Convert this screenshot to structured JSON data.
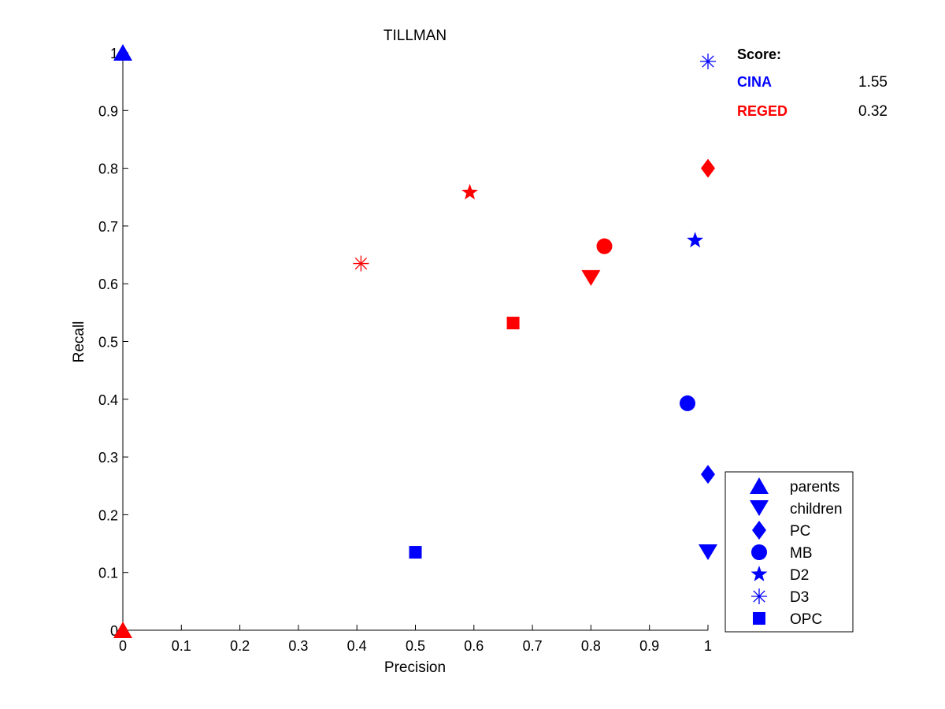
{
  "chart_data": {
    "type": "scatter",
    "title": "TILLMAN",
    "xlabel": "Precision",
    "ylabel": "Recall",
    "xlim": [
      0,
      1
    ],
    "ylim": [
      0,
      1
    ],
    "xticks": [
      "0",
      "0.1",
      "0.2",
      "0.3",
      "0.4",
      "0.5",
      "0.6",
      "0.7",
      "0.8",
      "0.9",
      "1"
    ],
    "yticks": [
      "0",
      "0.1",
      "0.2",
      "0.3",
      "0.4",
      "0.5",
      "0.6",
      "0.7",
      "0.8",
      "0.9",
      "1"
    ],
    "grid": false,
    "legend_position": "bottom-right",
    "legend": [
      {
        "label": "parents",
        "marker": "triangle-up"
      },
      {
        "label": "children",
        "marker": "triangle-down"
      },
      {
        "label": "PC",
        "marker": "diamond"
      },
      {
        "label": "MB",
        "marker": "circle"
      },
      {
        "label": "D2",
        "marker": "star"
      },
      {
        "label": "D3",
        "marker": "asterisk"
      },
      {
        "label": "OPC",
        "marker": "square"
      }
    ],
    "series": [
      {
        "dataset": "CINA",
        "color": "#0000ff",
        "points": [
          {
            "marker": "triangle-up",
            "x": 0.0,
            "y": 1.0
          },
          {
            "marker": "triangle-down",
            "x": 1.0,
            "y": 0.135
          },
          {
            "marker": "diamond",
            "x": 1.0,
            "y": 0.27
          },
          {
            "marker": "circle",
            "x": 0.965,
            "y": 0.393
          },
          {
            "marker": "star",
            "x": 0.978,
            "y": 0.675
          },
          {
            "marker": "asterisk",
            "x": 1.0,
            "y": 0.985
          },
          {
            "marker": "square",
            "x": 0.5,
            "y": 0.135
          }
        ]
      },
      {
        "dataset": "REGED",
        "color": "#ff0000",
        "points": [
          {
            "marker": "triangle-up",
            "x": 0.0,
            "y": 0.0
          },
          {
            "marker": "triangle-down",
            "x": 0.8,
            "y": 0.61
          },
          {
            "marker": "diamond",
            "x": 1.0,
            "y": 0.8
          },
          {
            "marker": "circle",
            "x": 0.823,
            "y": 0.665
          },
          {
            "marker": "star",
            "x": 0.593,
            "y": 0.758
          },
          {
            "marker": "asterisk",
            "x": 0.407,
            "y": 0.635
          },
          {
            "marker": "square",
            "x": 0.667,
            "y": 0.532
          }
        ]
      }
    ],
    "score_box": {
      "header": "Score:",
      "rows": [
        {
          "name": "CINA",
          "value": "1.55",
          "color": "#0000ff"
        },
        {
          "name": "REGED",
          "value": "0.32",
          "color": "#ff0000"
        }
      ]
    },
    "legend_color": "#0000ff"
  }
}
